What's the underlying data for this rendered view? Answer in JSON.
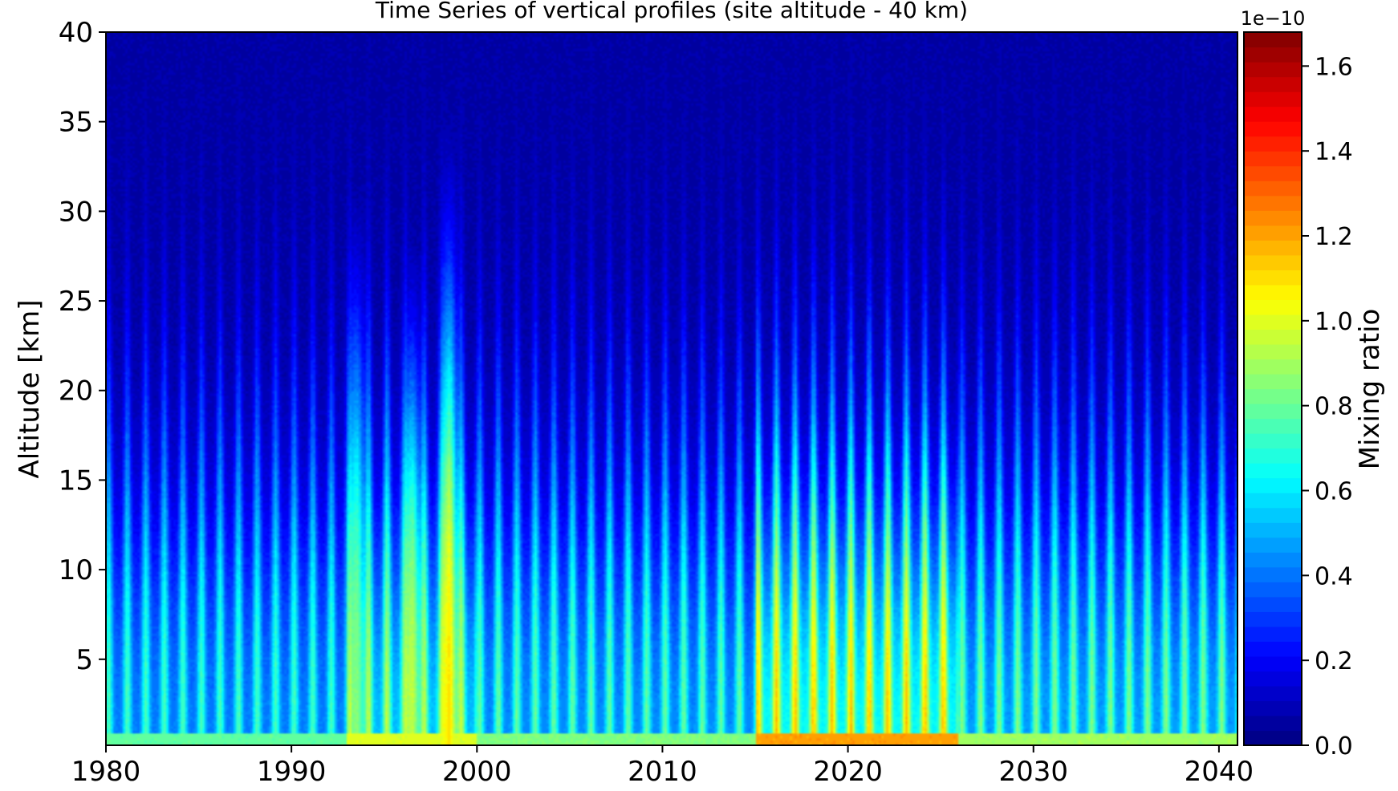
{
  "chart_data": {
    "type": "heatmap",
    "title": "Time Series of vertical profiles (site altitude - 40 km)",
    "xlabel": "",
    "ylabel": "Altitude [km]",
    "xlim": [
      1980,
      2041
    ],
    "ylim": [
      0.2,
      40
    ],
    "x_ticks": [
      1980,
      1990,
      2000,
      2010,
      2020,
      2030,
      2040
    ],
    "x_tick_labels": [
      "1980",
      "1990",
      "2000",
      "2010",
      "2020",
      "2030",
      "2040"
    ],
    "y_ticks": [
      5,
      10,
      15,
      20,
      25,
      30,
      35,
      40
    ],
    "y_tick_labels": [
      "5",
      "10",
      "15",
      "20",
      "25",
      "30",
      "35",
      "40"
    ],
    "colorbar": {
      "label": "Mixing ratio",
      "offset_text": "1e−10",
      "range": [
        0.0,
        1.68
      ],
      "ticks": [
        0.0,
        0.2,
        0.4,
        0.6,
        0.8,
        1.0,
        1.2,
        1.4,
        1.6
      ],
      "tick_labels": [
        "0.0",
        "0.2",
        "0.4",
        "0.6",
        "0.8",
        "1.0",
        "1.2",
        "1.4",
        "1.6"
      ],
      "levels": 48,
      "colormap": "jet"
    },
    "field_description": {
      "surface_values_approx": [
        {
          "period": [
            1980,
            1993
          ],
          "value": 0.75
        },
        {
          "period": [
            1993,
            2000
          ],
          "value": 0.95
        },
        {
          "period": [
            2000,
            2015
          ],
          "value": 0.8
        },
        {
          "period": [
            2015,
            2026
          ],
          "value": 1.15
        },
        {
          "period": [
            2026,
            2041
          ],
          "value": 0.85
        }
      ],
      "value_at_40km_approx": 0.06,
      "seasonal_cycle": "annual",
      "notable_peaks": [
        {
          "year": 1993.5,
          "max_value": 0.85,
          "top_altitude_km": 23
        },
        {
          "year": 1996.5,
          "max_value": 0.95,
          "top_altitude_km": 21
        },
        {
          "year": 1998.5,
          "max_value": 1.1,
          "top_altitude_km": 25
        }
      ]
    },
    "grid": false
  }
}
